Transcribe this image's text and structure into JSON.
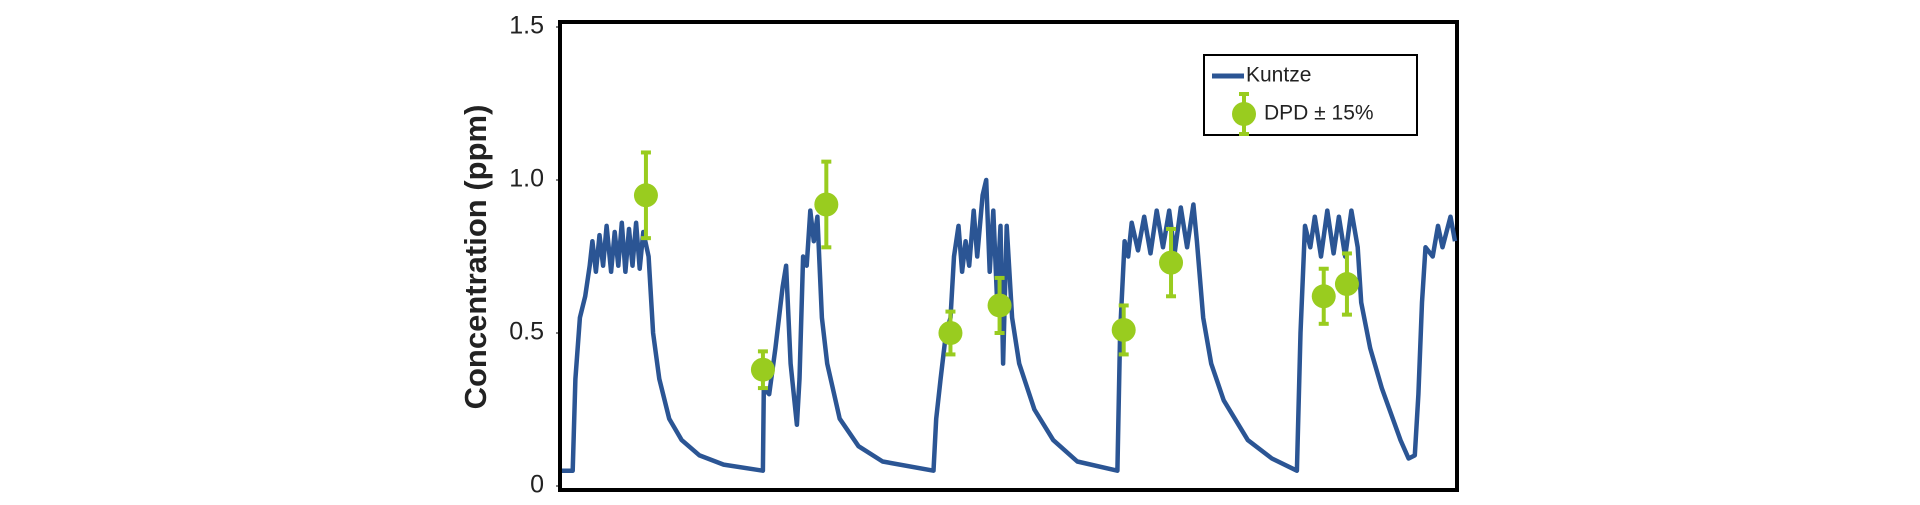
{
  "chart_data": {
    "type": "line",
    "y_label": "Concentration (ppm)",
    "ylim": [
      0,
      1.5
    ],
    "yticks": [
      0,
      {
        "value": 0.5,
        "label": "0.5"
      },
      {
        "value": 1,
        "label": "1.0"
      },
      1.5
    ],
    "xlim": [
      0,
      100
    ],
    "legend": "upper right",
    "series": [
      {
        "name": "Kuntze",
        "kind": "line",
        "color": "#2b5594",
        "x": [
          0,
          1.2,
          1.5,
          2.0,
          2.6,
          3.1,
          3.4,
          3.8,
          4.2,
          4.6,
          5.0,
          5.5,
          5.9,
          6.3,
          6.7,
          7.1,
          7.5,
          7.9,
          8.3,
          8.7,
          9.1,
          9.7,
          10.2,
          10.9,
          12.0,
          13.4,
          15.4,
          18.1,
          22.5,
          22.6,
          23.2,
          23.9,
          24.7,
          25.1,
          25.6,
          26.3,
          26.6,
          27.0,
          27.4,
          27.8,
          28.2,
          28.6,
          29.1,
          29.7,
          31.1,
          33.2,
          35.9,
          41.6,
          41.9,
          42.4,
          43.0,
          43.5,
          43.9,
          44.4,
          44.8,
          45.2,
          45.6,
          46.1,
          46.5,
          47.1,
          47.5,
          47.9,
          48.3,
          48.7,
          49.1,
          49.4,
          49.8,
          50.4,
          51.2,
          52.9,
          55.0,
          57.7,
          62.2,
          62.5,
          63.0,
          63.4,
          63.8,
          64.5,
          65.2,
          65.9,
          66.6,
          67.3,
          68.0,
          68.6,
          69.3,
          70.0,
          70.7,
          71.1,
          71.8,
          72.7,
          74.1,
          76.8,
          79.5,
          82.3,
          82.7,
          83.2,
          83.8,
          84.3,
          85.0,
          85.7,
          86.4,
          87.0,
          87.7,
          88.4,
          89.1,
          89.5,
          90.5,
          91.8,
          93.9,
          94.8,
          95.5,
          95.9,
          96.3,
          96.7,
          97.5,
          98.1,
          98.6,
          99.5,
          100
        ],
        "values": [
          0.05,
          0.05,
          0.35,
          0.55,
          0.62,
          0.72,
          0.8,
          0.7,
          0.82,
          0.72,
          0.85,
          0.7,
          0.83,
          0.72,
          0.86,
          0.7,
          0.84,
          0.72,
          0.86,
          0.71,
          0.83,
          0.75,
          0.5,
          0.35,
          0.22,
          0.15,
          0.1,
          0.07,
          0.05,
          0.32,
          0.3,
          0.45,
          0.65,
          0.72,
          0.4,
          0.2,
          0.35,
          0.75,
          0.72,
          0.9,
          0.8,
          0.88,
          0.55,
          0.4,
          0.22,
          0.13,
          0.08,
          0.05,
          0.22,
          0.35,
          0.5,
          0.55,
          0.75,
          0.85,
          0.7,
          0.8,
          0.72,
          0.9,
          0.75,
          0.95,
          1.0,
          0.7,
          0.9,
          0.62,
          0.85,
          0.4,
          0.85,
          0.55,
          0.4,
          0.25,
          0.15,
          0.08,
          0.05,
          0.5,
          0.8,
          0.75,
          0.86,
          0.77,
          0.88,
          0.76,
          0.9,
          0.78,
          0.9,
          0.76,
          0.91,
          0.78,
          0.92,
          0.8,
          0.55,
          0.4,
          0.28,
          0.15,
          0.09,
          0.05,
          0.5,
          0.85,
          0.78,
          0.88,
          0.75,
          0.9,
          0.76,
          0.88,
          0.75,
          0.9,
          0.78,
          0.6,
          0.45,
          0.32,
          0.15,
          0.09,
          0.1,
          0.3,
          0.6,
          0.78,
          0.75,
          0.85,
          0.78,
          0.88,
          0.8
        ]
      },
      {
        "name": "DPD ± 15%",
        "kind": "errorbar",
        "color": "#99cc1f",
        "x": [
          9.4,
          22.5,
          29.6,
          43.5,
          49.0,
          62.9,
          68.2,
          85.3,
          87.9
        ],
        "values": [
          0.95,
          0.38,
          0.92,
          0.5,
          0.59,
          0.51,
          0.73,
          0.62,
          0.66
        ],
        "errors": [
          0.14,
          0.06,
          0.14,
          0.07,
          0.09,
          0.08,
          0.11,
          0.09,
          0.1
        ]
      }
    ]
  }
}
